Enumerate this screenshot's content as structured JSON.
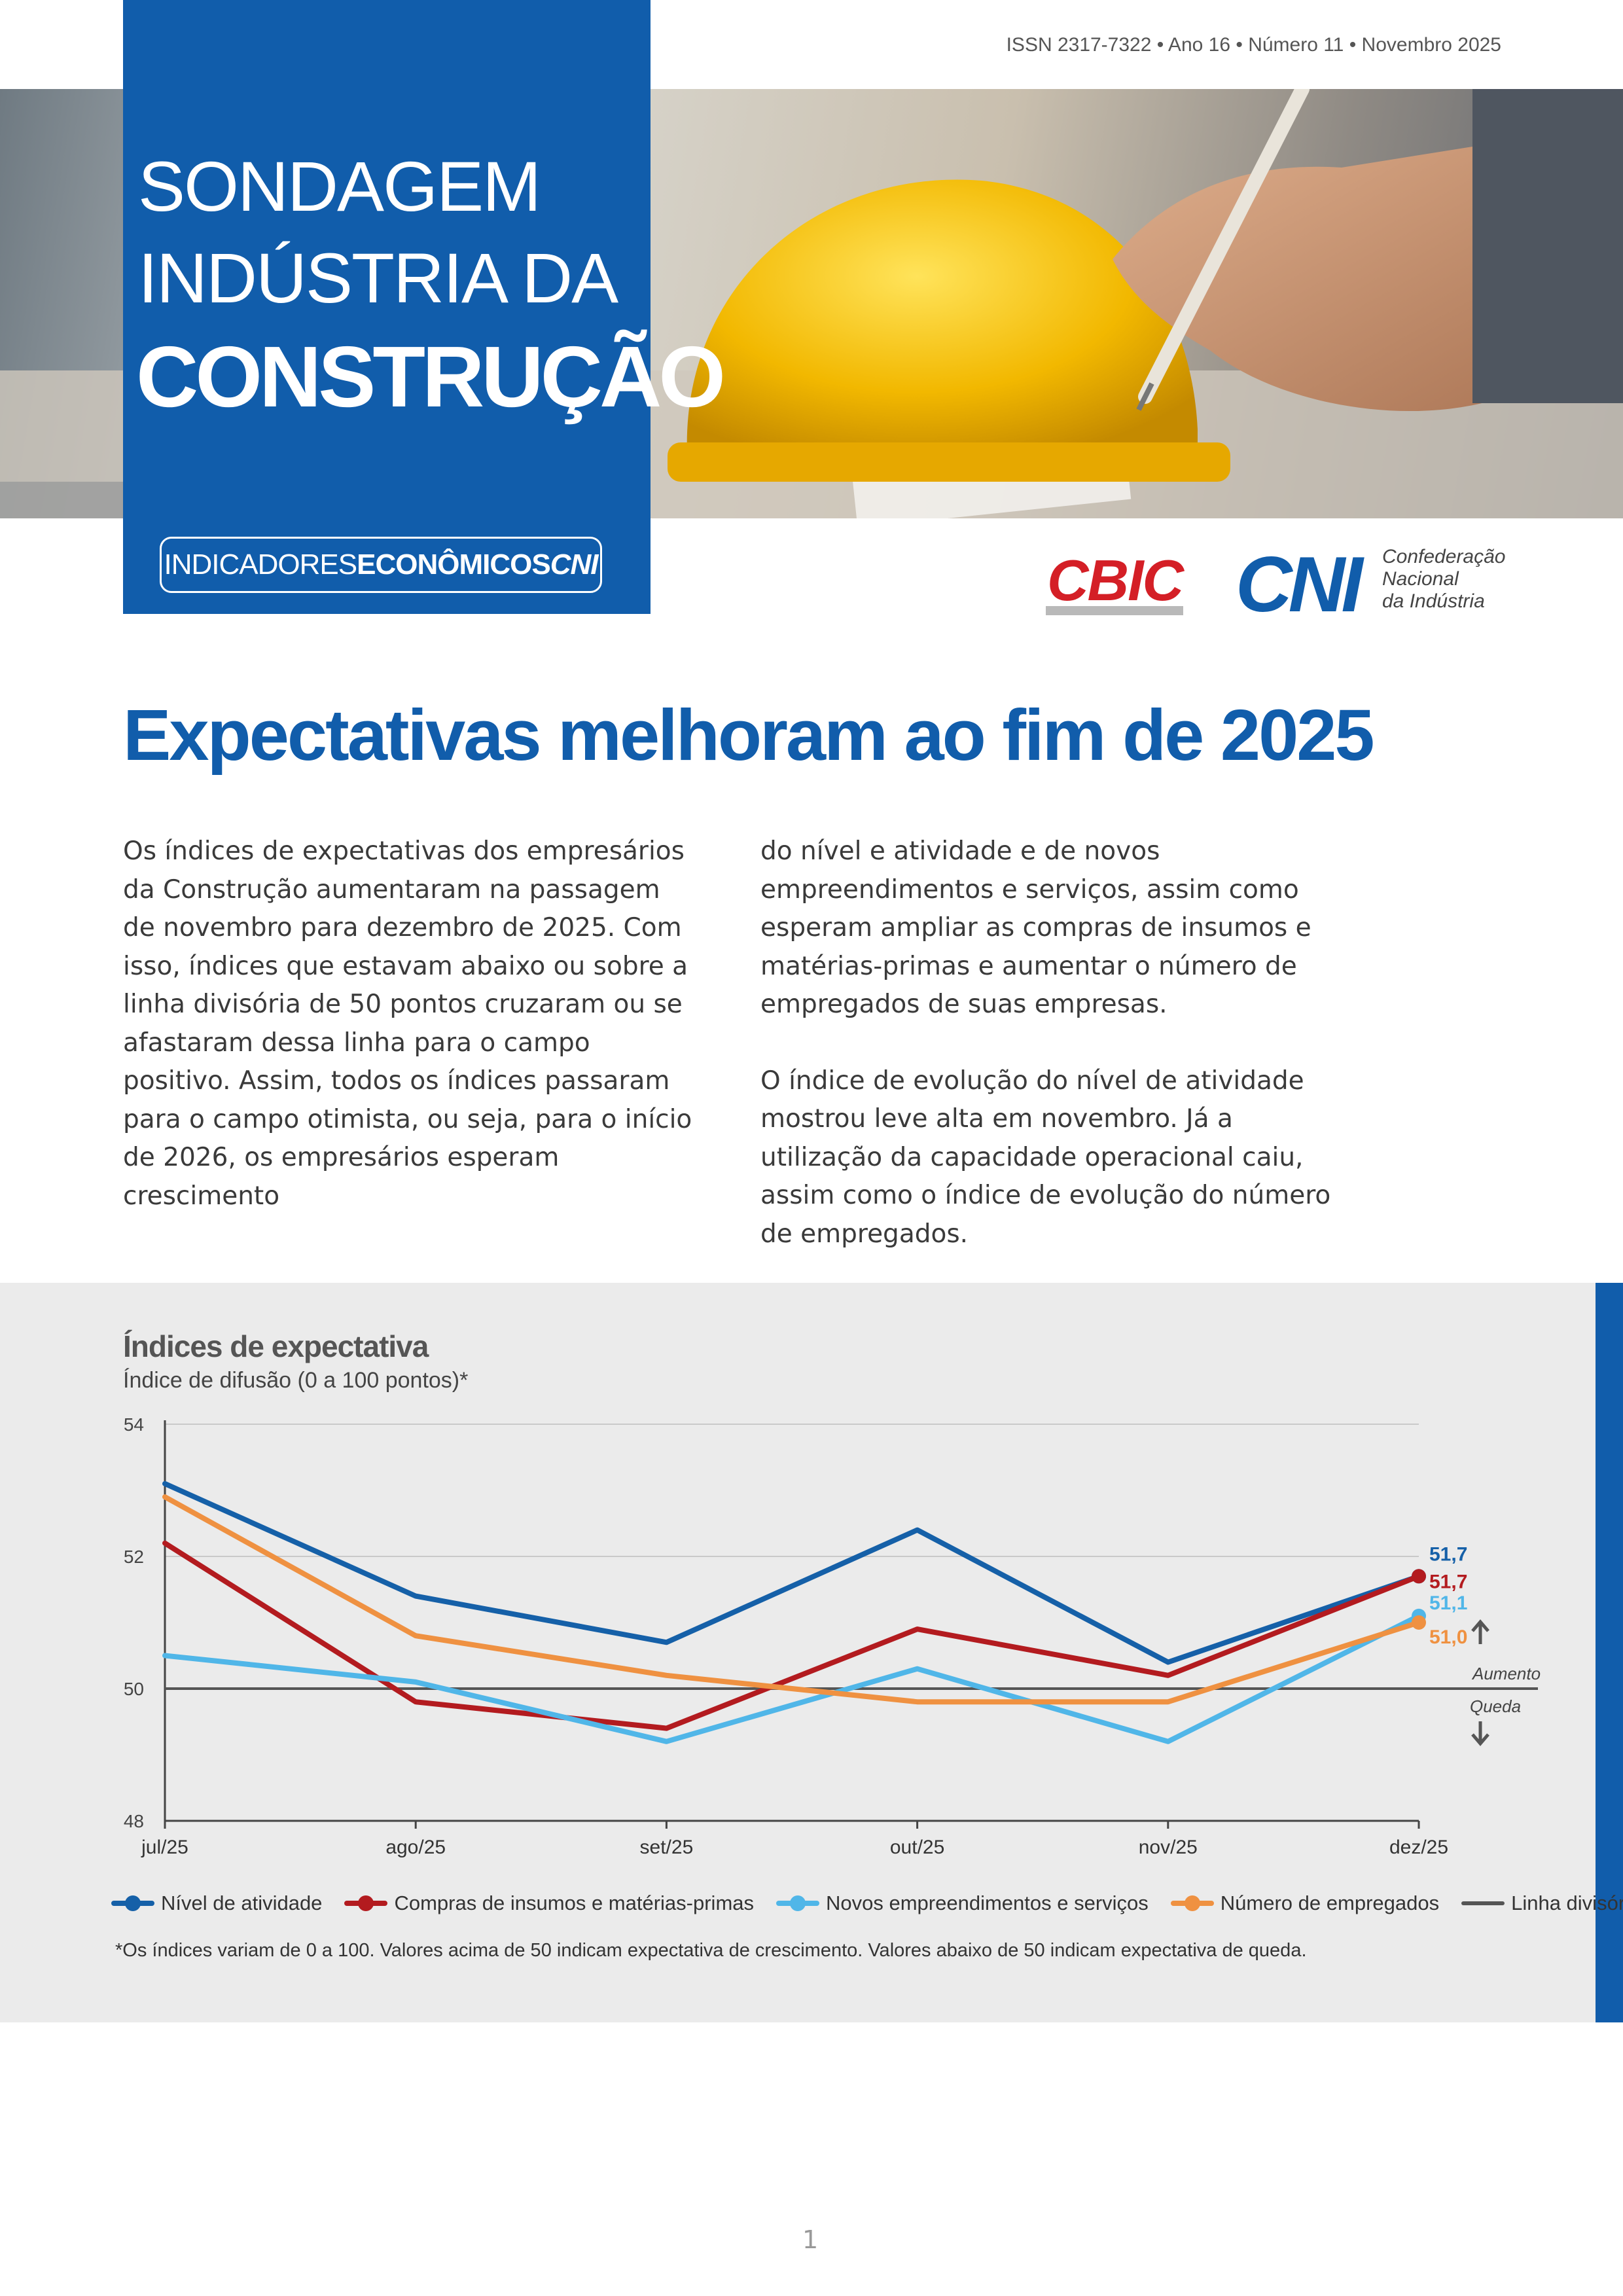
{
  "header": {
    "issn_line": "ISSN 2317-7322 • Ano 16 • Número 11 • Novembro 2025"
  },
  "cover": {
    "title_line1": "SONDAGEM",
    "title_line2": "INDÚSTRIA DA",
    "title_line3": "CONSTRUÇÃO",
    "series_light": "INDICADORES",
    "series_bold": "ECONÔMICOS",
    "series_brand": "CNI"
  },
  "logos": {
    "cbic": "CBIC",
    "cni": "CNI",
    "cni_line1": "Confederação",
    "cni_line2": "Nacional",
    "cni_line3": "da Indústria"
  },
  "article": {
    "headline": "Expectativas melhoram ao fim de 2025",
    "paragraph1": "Os índices de expectativas dos empresários da Construção aumentaram na passagem de novembro para dezembro de 2025. Com isso, índices que estavam abaixo ou sobre a linha divisória de 50 pontos cruzaram ou se afastaram dessa linha para o campo positivo. Assim, todos os índices passaram para o campo otimista, ou seja, para o início de 2026, os empresários esperam crescimento do nível e atividade e de novos empreendimentos e serviços, assim como esperam ampliar as compras de insumos e matérias-primas e aumentar o número de empregados de suas empresas.",
    "paragraph2": "O índice de evolução do nível de atividade mostrou leve alta em novembro. Já a utilização da capacidade operacional caiu, assim como o índice de evolução do número de empregados."
  },
  "chart_data": {
    "type": "line",
    "title": "Índices de expectativa",
    "subtitle": "Índice de difusão (0 a 100 pontos)*",
    "categories": [
      "jul/25",
      "ago/25",
      "set/25",
      "out/25",
      "nov/25",
      "dez/25"
    ],
    "ylim": [
      48,
      54
    ],
    "yticks": [
      "48",
      "50",
      "52",
      "54"
    ],
    "grid": true,
    "series": [
      {
        "name": "Nível de atividade",
        "color": "#1560a8",
        "values": [
          53.1,
          51.4,
          50.7,
          52.4,
          50.4,
          51.7
        ],
        "end_label": "51,7"
      },
      {
        "name": "Compras de insumos e matérias-primas",
        "color": "#b31b1f",
        "values": [
          52.2,
          49.8,
          49.4,
          50.9,
          50.2,
          51.7
        ],
        "end_label": "51,7"
      },
      {
        "name": "Novos empreendimentos e serviços",
        "color": "#50b6e8",
        "values": [
          50.5,
          50.1,
          49.2,
          50.3,
          49.2,
          51.1
        ],
        "end_label": "51,1"
      },
      {
        "name": "Número de empregados",
        "color": "#ef9141",
        "values": [
          52.9,
          50.8,
          50.2,
          49.8,
          49.8,
          51.0
        ],
        "end_label": "51,0"
      }
    ],
    "divider": {
      "name": "Linha divisória",
      "value": 50,
      "color": "#555555"
    },
    "up_label": "Aumento",
    "down_label": "Queda",
    "footnote": "*Os índices variam de 0 a 100. Valores acima de 50 indicam expectativa de crescimento. Valores abaixo de 50 indicam expectativa de queda."
  },
  "footer": {
    "page_number": "1"
  }
}
